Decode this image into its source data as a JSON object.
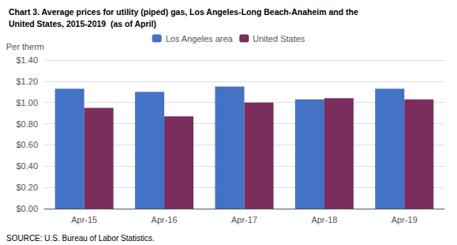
{
  "chart_data": {
    "type": "bar",
    "title": "Chart 3. Average prices for utility (piped) gas, Los Angeles-Long Beach-Anaheim and the",
    "subtitle": "United States, 2015-2019  (as of April)",
    "ylabel": "Per therm",
    "categories": [
      "Apr-15",
      "Apr-16",
      "Apr-17",
      "Apr-18",
      "Apr-19"
    ],
    "series": [
      {
        "name": "Los Angeles area",
        "color": "#4472C4",
        "values": [
          1.13,
          1.1,
          1.15,
          1.03,
          1.13
        ]
      },
      {
        "name": "United States",
        "color": "#7B2D5E",
        "values": [
          0.95,
          0.87,
          1.0,
          1.04,
          1.03
        ]
      }
    ],
    "ylim": [
      0,
      1.4
    ],
    "yticks": [
      {
        "value": 0.0,
        "label": "$0.00"
      },
      {
        "value": 0.2,
        "label": "$0.20"
      },
      {
        "value": 0.4,
        "label": "$0.40"
      },
      {
        "value": 0.6,
        "label": "$0.60"
      },
      {
        "value": 0.8,
        "label": "$0.80"
      },
      {
        "value": 1.0,
        "label": "$1.00"
      },
      {
        "value": 1.2,
        "label": "$1.20"
      },
      {
        "value": 1.4,
        "label": "$1.40"
      }
    ],
    "grid": true,
    "legend": "top",
    "annotations": [
      "SOURCE: U.S. Bureau of Labor Statistics."
    ]
  }
}
